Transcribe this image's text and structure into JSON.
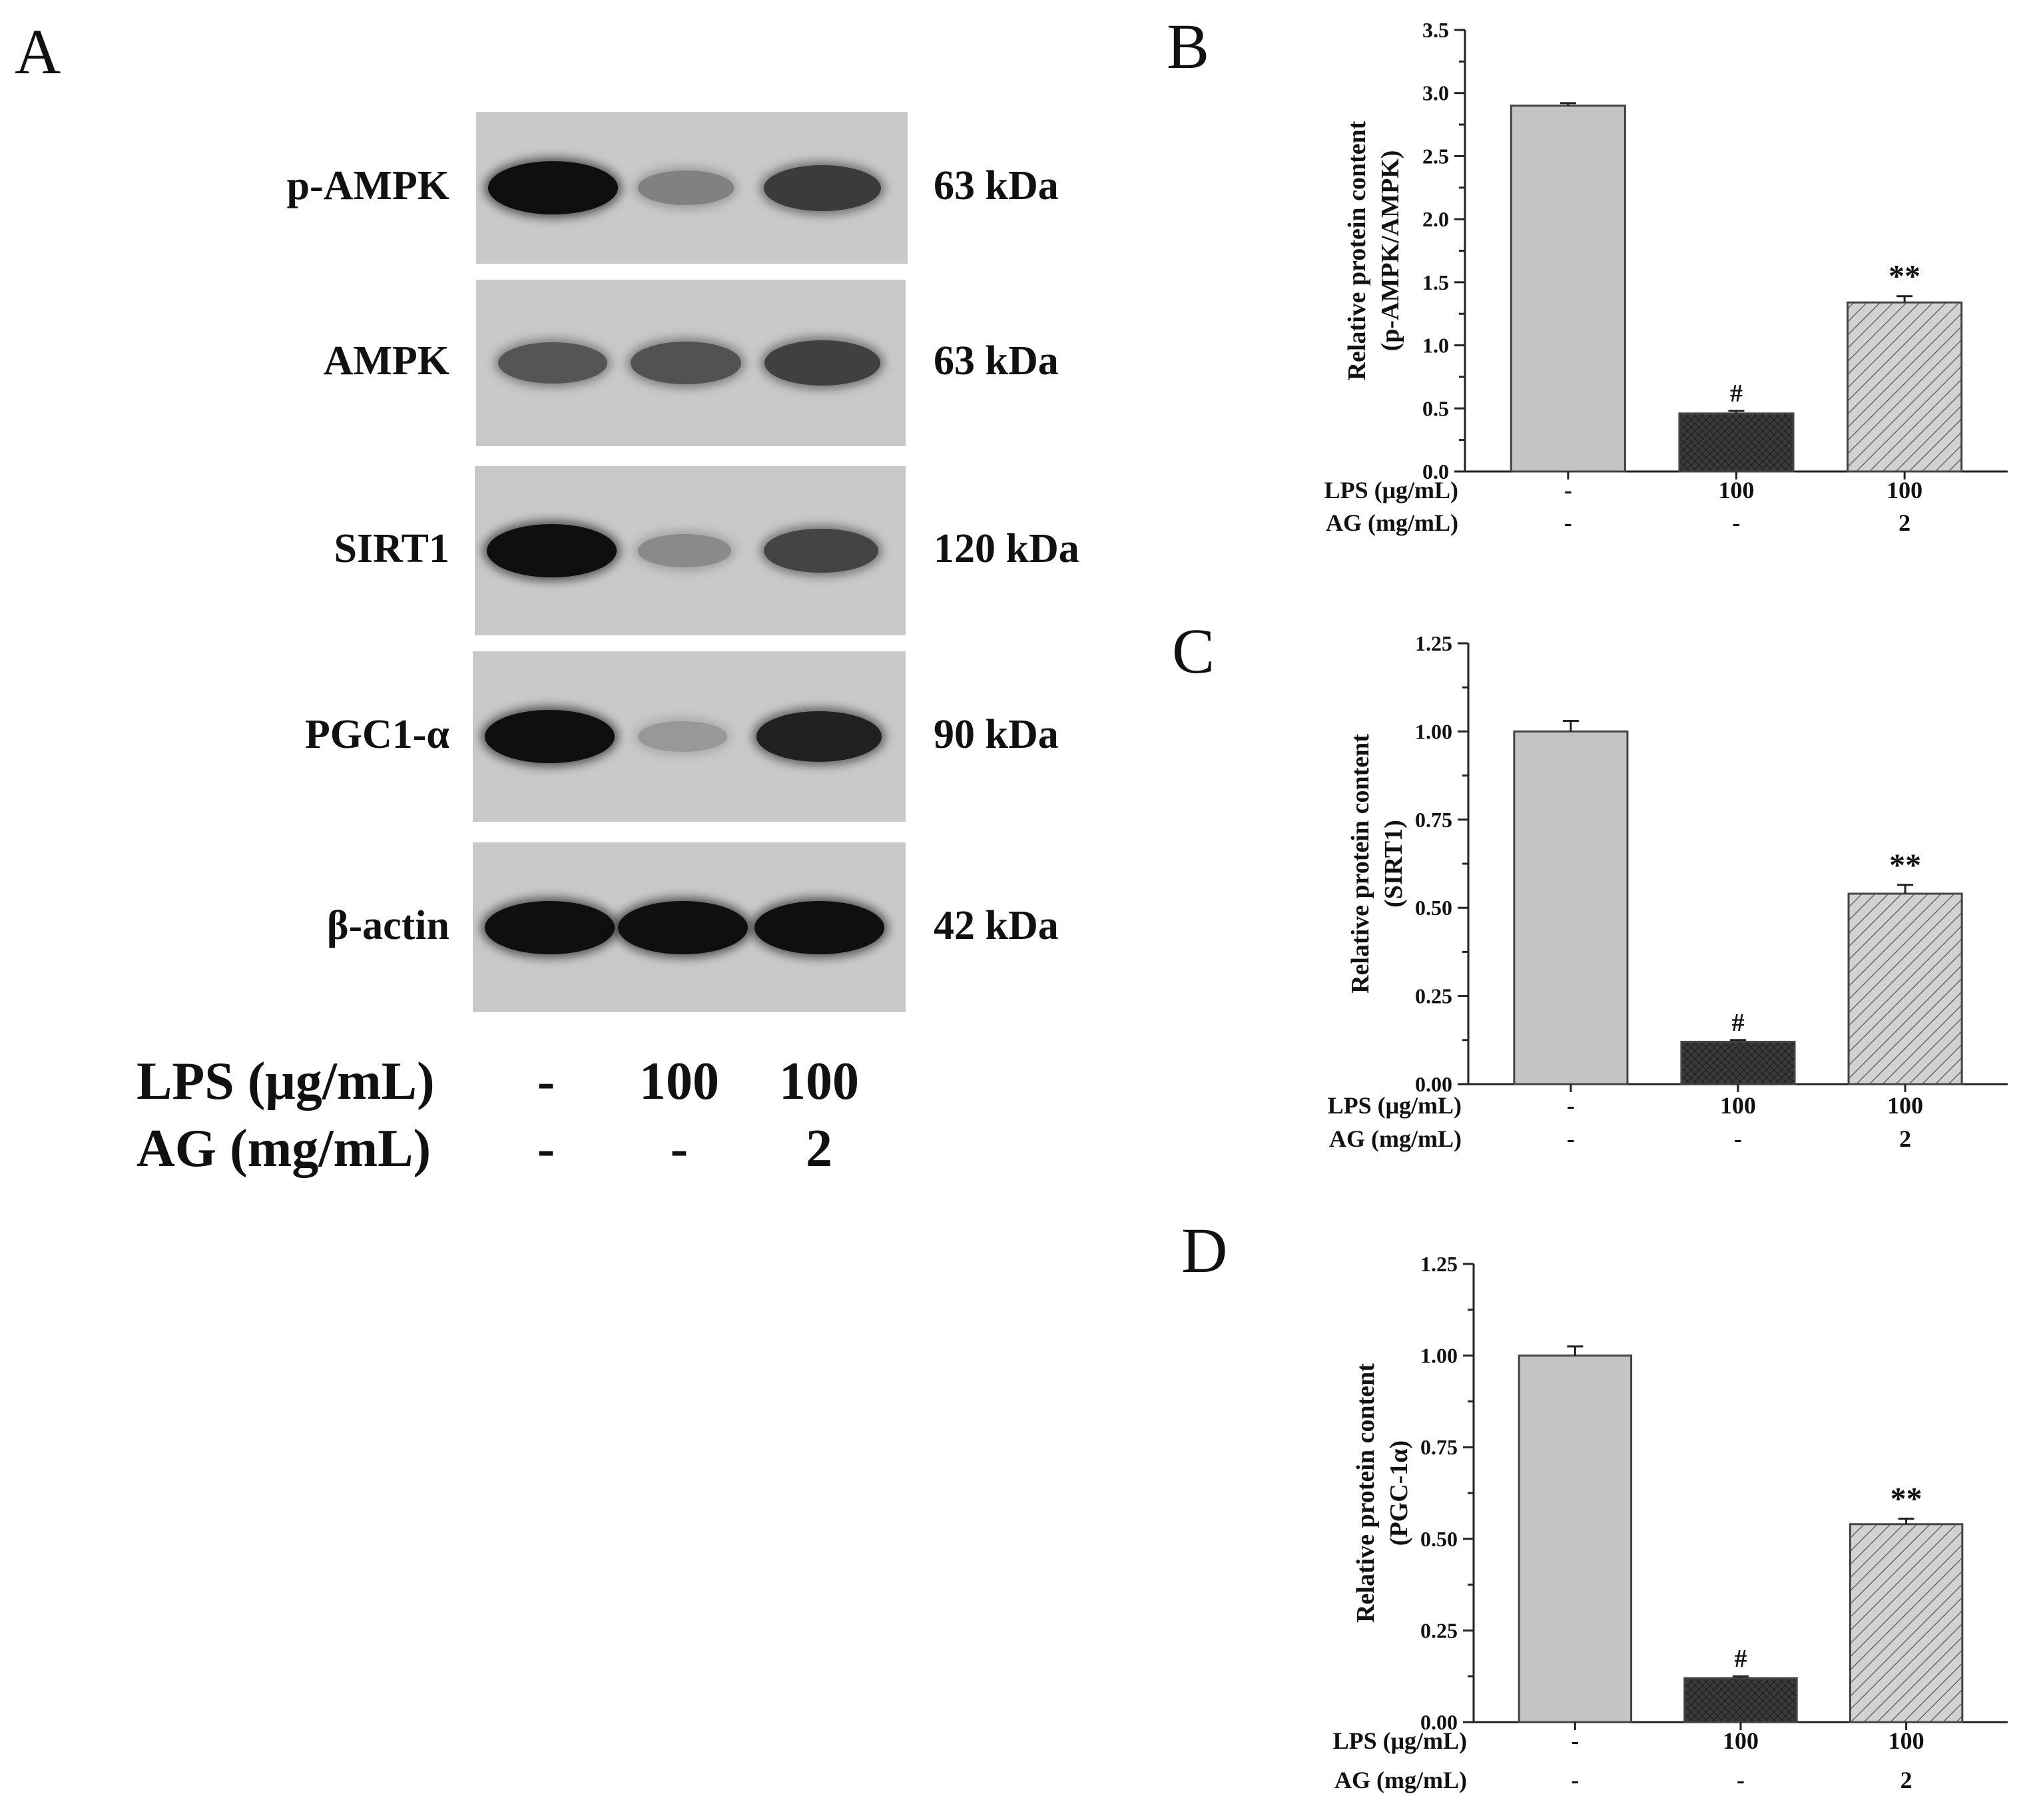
{
  "panels": {
    "a": "A",
    "b": "B",
    "c": "C",
    "d": "D"
  },
  "colors": {
    "control_bar": "#c4c4c4",
    "lps_bar": "#3a3a3a",
    "ag_bar_hatch": "#d2d2d2",
    "blot_bg": "#c9c9c9",
    "band": "#101010"
  },
  "western_blot": {
    "rows": [
      {
        "label": "p-AMPK",
        "kda": "63 kDa",
        "intensity": [
          1.0,
          0.35,
          0.75
        ]
      },
      {
        "label": "AMPK",
        "kda": "63 kDa",
        "intensity": [
          0.6,
          0.62,
          0.72
        ]
      },
      {
        "label": "SIRT1",
        "kda": "120 kDa",
        "intensity": [
          1.0,
          0.3,
          0.7
        ]
      },
      {
        "label": "PGC1-α",
        "kda": "90 kDa",
        "intensity": [
          1.0,
          0.22,
          0.9
        ]
      },
      {
        "label": "β-actin",
        "kda": "42 kDa",
        "intensity": [
          1.0,
          1.0,
          1.0
        ]
      }
    ],
    "conditions": {
      "lps_label": "LPS (μg/mL)",
      "lps_values": [
        "-",
        "100",
        "100"
      ],
      "ag_label": "AG (mg/mL)",
      "ag_values": [
        "-",
        "-",
        "2"
      ]
    }
  },
  "chart_data": [
    {
      "type": "bar",
      "panel": "B",
      "ylabel_line1": "Relative protein content",
      "ylabel_line2": "(p-AMPK/AMPK)",
      "ylim": [
        0,
        3.5
      ],
      "yticks": [
        "0.0",
        "0.5",
        "1.0",
        "1.5",
        "2.0",
        "2.5",
        "3.0",
        "3.5"
      ],
      "ytick_values": [
        0,
        0.5,
        1.0,
        1.5,
        2.0,
        2.5,
        3.0,
        3.5
      ],
      "values": [
        2.9,
        0.46,
        1.34
      ],
      "errors": [
        0.02,
        0.02,
        0.05
      ],
      "annotations": [
        "",
        "#",
        "**"
      ],
      "row_labels": [
        "LPS (μg/mL)",
        "AG (mg/mL)"
      ],
      "lps_values": [
        "-",
        "100",
        "100"
      ],
      "ag_values": [
        "-",
        "-",
        "2"
      ]
    },
    {
      "type": "bar",
      "panel": "C",
      "ylabel_line1": "Relative protein content",
      "ylabel_line2": "(SIRT1)",
      "ylim": [
        0,
        1.25
      ],
      "yticks": [
        "0.00",
        "0.25",
        "0.50",
        "0.75",
        "1.00",
        "1.25"
      ],
      "ytick_values": [
        0,
        0.25,
        0.5,
        0.75,
        1.0,
        1.25
      ],
      "values": [
        1.0,
        0.12,
        0.54
      ],
      "errors": [
        0.03,
        0.005,
        0.025
      ],
      "annotations": [
        "",
        "#",
        "**"
      ],
      "row_labels": [
        "LPS (μg/mL)",
        "AG (mg/mL)"
      ],
      "lps_values": [
        "-",
        "100",
        "100"
      ],
      "ag_values": [
        "-",
        "-",
        "2"
      ]
    },
    {
      "type": "bar",
      "panel": "D",
      "ylabel_line1": "Relative protein content",
      "ylabel_line2": "(PGC-1α)",
      "ylim": [
        0,
        1.25
      ],
      "yticks": [
        "0.00",
        "0.25",
        "0.50",
        "0.75",
        "1.00",
        "1.25"
      ],
      "ytick_values": [
        0,
        0.25,
        0.5,
        0.75,
        1.0,
        1.25
      ],
      "values": [
        1.0,
        0.12,
        0.54
      ],
      "errors": [
        0.025,
        0.005,
        0.015
      ],
      "annotations": [
        "",
        "#",
        "**"
      ],
      "row_labels": [
        "LPS (μg/mL)",
        "AG (mg/mL)"
      ],
      "lps_values": [
        "-",
        "100",
        "100"
      ],
      "ag_values": [
        "-",
        "-",
        "2"
      ]
    }
  ]
}
